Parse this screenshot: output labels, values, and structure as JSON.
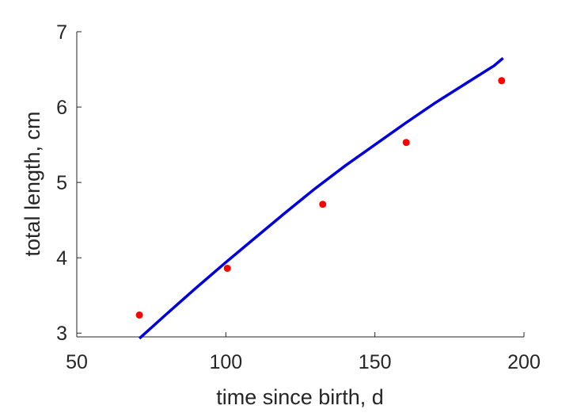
{
  "chart_data": {
    "type": "scatter",
    "xlabel": "time since birth, d",
    "ylabel": "total length, cm",
    "xlim": [
      50,
      200
    ],
    "ylim": [
      2.95,
      7
    ],
    "xticks": [
      50,
      100,
      150,
      200
    ],
    "yticks": [
      3,
      4,
      5,
      6,
      7
    ],
    "grid": false,
    "series": [
      {
        "kind": "points",
        "color": "#ff0000",
        "x": [
          71,
          100.5,
          132.5,
          160.5,
          192.5
        ],
        "y": [
          3.24,
          3.86,
          4.71,
          5.53,
          6.35
        ]
      },
      {
        "kind": "line",
        "color": "#0000dd",
        "x": [
          71,
          80,
          90,
          100,
          110,
          120,
          130,
          140,
          150,
          160,
          170,
          180,
          190,
          193
        ],
        "y": [
          2.93,
          3.25,
          3.6,
          3.94,
          4.27,
          4.6,
          4.92,
          5.22,
          5.5,
          5.78,
          6.05,
          6.3,
          6.55,
          6.65
        ]
      }
    ]
  }
}
